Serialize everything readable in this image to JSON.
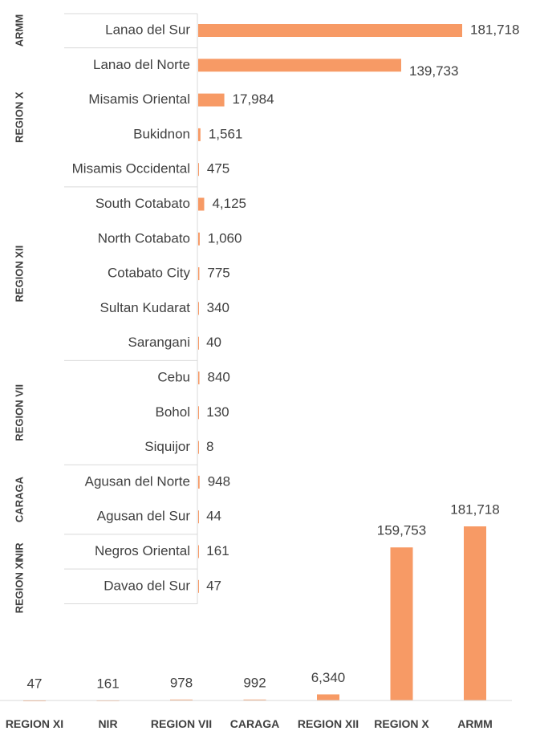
{
  "chart_data": [
    {
      "type": "hbar",
      "color": "#f79a65",
      "groups": [
        {
          "name": "ARMM",
          "count": 1
        },
        {
          "name": "REGION X",
          "count": 4
        },
        {
          "name": "REGION XII",
          "count": 5
        },
        {
          "name": "REGION VII",
          "count": 3
        },
        {
          "name": "CARAGA",
          "count": 2
        },
        {
          "name": "NIR",
          "count": 1
        },
        {
          "name": "REGION XI",
          "count": 1
        }
      ],
      "categories": [
        "Lanao del Sur",
        "Lanao del Norte",
        "Misamis Oriental",
        "Bukidnon",
        "Misamis Occidental",
        "South Cotabato",
        "North Cotabato",
        "Cotabato City",
        "Sultan Kudarat",
        "Sarangani",
        "Cebu",
        "Bohol",
        "Siquijor",
        "Agusan del Norte",
        "Agusan del Sur",
        "Negros Oriental",
        "Davao del Sur"
      ],
      "values": [
        181718,
        139733,
        17984,
        1561,
        475,
        4125,
        1060,
        775,
        340,
        40,
        840,
        130,
        8,
        948,
        44,
        161,
        47
      ],
      "value_labels": [
        "181,718",
        "139,733",
        "17,984",
        "1,561",
        "475",
        "4,125",
        "1,060",
        "775",
        "340",
        "40",
        "840",
        "130",
        "8",
        "948",
        "44",
        "161",
        "47"
      ]
    },
    {
      "type": "bar",
      "color": "#f79a65",
      "categories": [
        "REGION XI",
        "NIR",
        "REGION VII",
        "CARAGA",
        "REGION XII",
        "REGION X",
        "ARMM"
      ],
      "values": [
        47,
        161,
        978,
        992,
        6340,
        159753,
        181718
      ],
      "value_labels": [
        "47",
        "161",
        "978",
        "992",
        "6,340",
        "159,753",
        "181,718"
      ]
    }
  ]
}
